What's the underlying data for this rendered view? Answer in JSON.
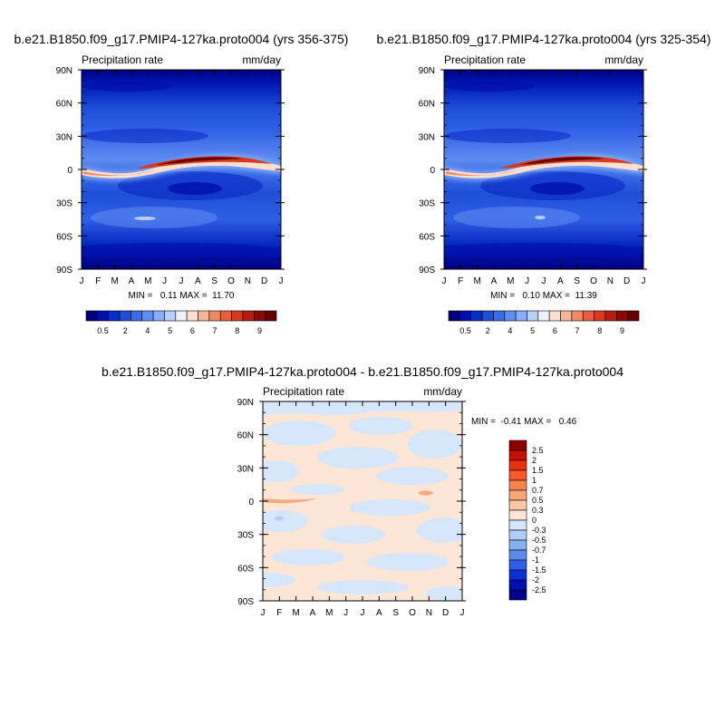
{
  "panels": [
    {
      "id": "top-left",
      "title": "b.e21.B1850.f09_g17.PMIP4-127ka.proto004 (yrs 356-375)",
      "left_string": "Precipitation rate",
      "right_string": "mm/day",
      "stats": "MIN =   0.11 MAX =  11.70"
    },
    {
      "id": "top-right",
      "title": "b.e21.B1850.f09_g17.PMIP4-127ka.proto004 (yrs 325-354)",
      "left_string": "Precipitation rate",
      "right_string": "mm/day",
      "stats": "MIN =   0.10 MAX =  11.39"
    },
    {
      "id": "difference",
      "title": "b.e21.B1850.f09_g17.PMIP4-127ka.proto004 - b.e21.B1850.f09_g17.PMIP4-127ka.proto004",
      "left_string": "Precipitation rate",
      "right_string": "mm/day",
      "stats": "MIN =  -0.41 MAX =   0.46"
    }
  ],
  "axes": {
    "x_ticks": [
      "J",
      "F",
      "M",
      "A",
      "M",
      "J",
      "J",
      "A",
      "S",
      "O",
      "N",
      "D",
      "J"
    ],
    "y_ticks": [
      "90N",
      "60N",
      "30N",
      "0",
      "30S",
      "60S",
      "90S"
    ]
  },
  "colorbars": {
    "precip": {
      "labels": [
        "0.5",
        "2",
        "4",
        "5",
        "6",
        "7",
        "8",
        "9"
      ],
      "colors": [
        "#00007f",
        "#0010a8",
        "#0a2ec4",
        "#1f4fd9",
        "#3a6be8",
        "#5e8cf0",
        "#8aaef5",
        "#b8d0f8",
        "#ecf2fb",
        "#fde0d0",
        "#f7b497",
        "#f08a66",
        "#e5603e",
        "#d43a22",
        "#b81c10",
        "#8e0606",
        "#6a0000"
      ]
    },
    "diff": {
      "labels": [
        "2.5",
        "2",
        "1.5",
        "1",
        "0.7",
        "0.5",
        "0.3",
        "0",
        "-0.3",
        "-0.5",
        "-0.7",
        "-1",
        "-1.5",
        "-2",
        "-2.5"
      ],
      "colors": [
        "#8b0000",
        "#c40f0a",
        "#e8320f",
        "#f55a2a",
        "#f7834f",
        "#f9a67a",
        "#fbc8a8",
        "#fde6d6",
        "#d6e6fb",
        "#b2cdf6",
        "#8aaff0",
        "#5e8bea",
        "#2f5fe6",
        "#0b2fd6",
        "#0010b0",
        "#00008b"
      ]
    }
  },
  "chart_data": [
    {
      "type": "heatmap",
      "title": "b.e21.B1850.f09_g17.PMIP4-127ka.proto004 (yrs 356-375)",
      "variable": "Precipitation rate",
      "units": "mm/day",
      "x": [
        "J",
        "F",
        "M",
        "A",
        "M",
        "J",
        "J",
        "A",
        "S",
        "O",
        "N",
        "D",
        "J"
      ],
      "y": [
        "90N",
        "60N",
        "30N",
        "0",
        "30S",
        "60S",
        "90S"
      ],
      "min": 0.11,
      "max": 11.7,
      "colorbar_levels": [
        0.5,
        2,
        4,
        5,
        6,
        7,
        8,
        9
      ]
    },
    {
      "type": "heatmap",
      "title": "b.e21.B1850.f09_g17.PMIP4-127ka.proto004 (yrs 325-354)",
      "variable": "Precipitation rate",
      "units": "mm/day",
      "x": [
        "J",
        "F",
        "M",
        "A",
        "M",
        "J",
        "J",
        "A",
        "S",
        "O",
        "N",
        "D",
        "J"
      ],
      "y": [
        "90N",
        "60N",
        "30N",
        "0",
        "30S",
        "60S",
        "90S"
      ],
      "min": 0.1,
      "max": 11.39,
      "colorbar_levels": [
        0.5,
        2,
        4,
        5,
        6,
        7,
        8,
        9
      ]
    },
    {
      "type": "heatmap",
      "title": "b.e21.B1850.f09_g17.PMIP4-127ka.proto004 - b.e21.B1850.f09_g17.PMIP4-127ka.proto004",
      "variable": "Precipitation rate",
      "units": "mm/day",
      "x": [
        "J",
        "F",
        "M",
        "A",
        "M",
        "J",
        "J",
        "A",
        "S",
        "O",
        "N",
        "D",
        "J"
      ],
      "y": [
        "90N",
        "60N",
        "30N",
        "0",
        "30S",
        "60S",
        "90S"
      ],
      "min": -0.41,
      "max": 0.46,
      "colorbar_levels": [
        2.5,
        2,
        1.5,
        1,
        0.7,
        0.5,
        0.3,
        0,
        -0.3,
        -0.5,
        -0.7,
        -1,
        -1.5,
        -2,
        -2.5
      ]
    }
  ]
}
